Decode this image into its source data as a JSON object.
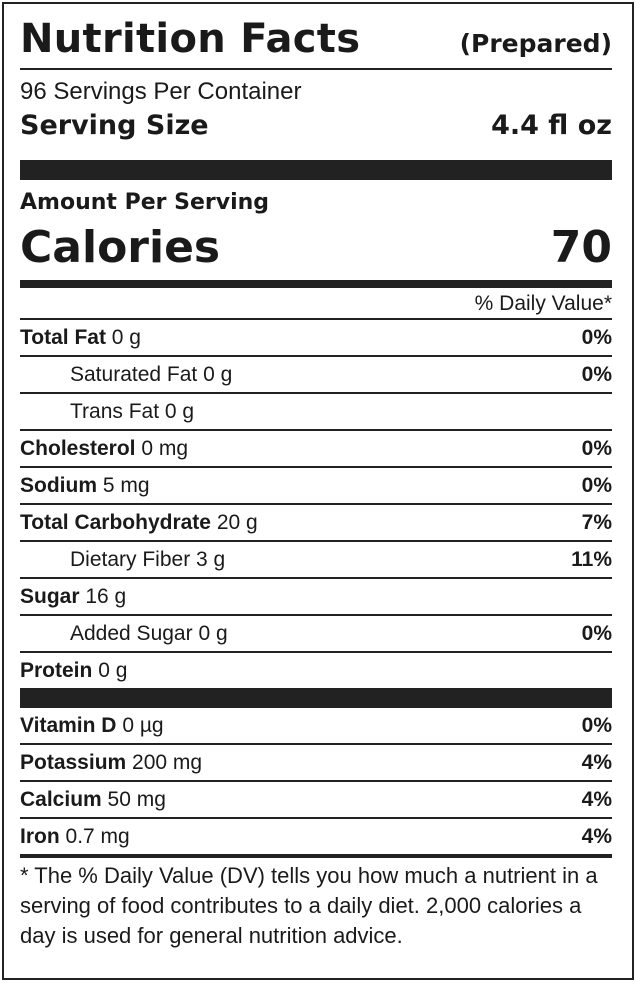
{
  "header": {
    "title": "Nutrition Facts",
    "subtitle": "(Prepared)",
    "servings_per_container": "96 Servings Per Container",
    "serving_size_label": "Serving Size",
    "serving_size_value": "4.4 fl oz"
  },
  "calories": {
    "amount_label": "Amount Per Serving",
    "label": "Calories",
    "value": "70"
  },
  "daily_value_header": "% Daily Value*",
  "nutrients": [
    {
      "name": "Total Fat",
      "amount": "0 g",
      "dv": "0%"
    },
    {
      "name": "Saturated Fat",
      "amount": "0 g",
      "dv": "0%"
    },
    {
      "name": "Trans Fat",
      "amount": "0 g",
      "dv": ""
    },
    {
      "name": "Cholesterol",
      "amount": "0 mg",
      "dv": "0%"
    },
    {
      "name": "Sodium",
      "amount": "5 mg",
      "dv": "0%"
    },
    {
      "name": "Total Carbohydrate",
      "amount": "20 g",
      "dv": "7%"
    },
    {
      "name": "Dietary Fiber",
      "amount": "3 g",
      "dv": "11%"
    },
    {
      "name": "Sugar",
      "amount": "16 g",
      "dv": ""
    },
    {
      "name": "Added Sugar",
      "amount": "0 g",
      "dv": "0%"
    },
    {
      "name": "Protein",
      "amount": "0 g",
      "dv": ""
    }
  ],
  "vitamins": [
    {
      "name": "Vitamin D",
      "amount": "0 µg",
      "dv": "0%"
    },
    {
      "name": "Potassium",
      "amount": "200 mg",
      "dv": "4%"
    },
    {
      "name": "Calcium",
      "amount": "50 mg",
      "dv": "4%"
    },
    {
      "name": "Iron",
      "amount": "0.7 mg",
      "dv": "4%"
    }
  ],
  "footnote": "* The % Daily Value (DV) tells you how much a nutrient in a serving of food contributes to a daily diet. 2,000 calories a day is used for general nutrition advice."
}
